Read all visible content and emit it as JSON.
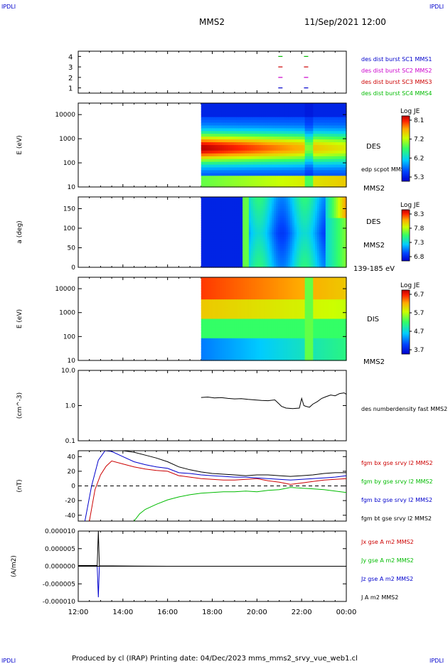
{
  "header": {
    "corner_tl": "IPDLI",
    "corner_tr": "IPDLI",
    "corner_bl": "IPDLI",
    "corner_br": "IPDLI",
    "title": "MMS2",
    "datetime": "11/Sep/2021 12:00",
    "footer": "Produced by cl (IRAP)   Printing date: 04/Dec/2023   mms_mms2_srvy_vue_web1.cl"
  },
  "colors": {
    "blue": "#0000cc",
    "magenta": "#cc00cc",
    "red": "#cc0000",
    "green": "#00bb00",
    "black": "#000000"
  },
  "time_axis": {
    "ticks": [
      "12:00",
      "14:00",
      "16:00",
      "18:00",
      "20:00",
      "22:00",
      "00:00"
    ],
    "hours": [
      12,
      14,
      16,
      18,
      20,
      22,
      24
    ],
    "data_start_hour": 17.5
  },
  "chart_data": [
    {
      "type": "scatter",
      "panel": "spacecraft",
      "ticks": [
        "4",
        "3",
        "2",
        "1"
      ],
      "ylim": [
        0.5,
        4.5
      ],
      "legend": [
        {
          "label": "des dist burst SC1 MMS1",
          "color": "blue"
        },
        {
          "label": "des dist burst SC2 MMS2",
          "color": "magenta"
        },
        {
          "label": "des dist burst SC3 MMS3",
          "color": "red"
        },
        {
          "label": "des dist burst SC4 MMS4",
          "color": "green"
        }
      ],
      "marks": [
        {
          "x": 21.05,
          "y": 4,
          "color": "green"
        },
        {
          "x": 22.2,
          "y": 4,
          "color": "green"
        },
        {
          "x": 21.05,
          "y": 3,
          "color": "red"
        },
        {
          "x": 22.2,
          "y": 3,
          "color": "red"
        },
        {
          "x": 21.05,
          "y": 2,
          "color": "magenta"
        },
        {
          "x": 22.2,
          "y": 2,
          "color": "magenta"
        },
        {
          "x": 21.05,
          "y": 1,
          "color": "blue"
        },
        {
          "x": 22.2,
          "y": 1,
          "color": "blue"
        }
      ]
    },
    {
      "type": "heatmap",
      "panel": "des-energy",
      "ylabel": "E (eV)",
      "yscale": "log",
      "ylim": [
        10,
        30000
      ],
      "ticks": [
        "10000",
        "1000",
        "100",
        "10"
      ],
      "tick_values": [
        10000,
        1000,
        100,
        10
      ],
      "label": "DES",
      "sublabel": "edp scpot MMS2",
      "sat_label": "MMS2",
      "colorbar": {
        "title": "Log JE",
        "ticks": [
          "8.1",
          "7.2",
          "6.2",
          "5.3"
        ]
      }
    },
    {
      "type": "heatmap",
      "panel": "des-pitch",
      "ylabel": "a (deg)",
      "ylim": [
        0,
        180
      ],
      "ticks": [
        "150",
        "100",
        "50",
        "0"
      ],
      "tick_values": [
        150,
        100,
        50,
        0
      ],
      "label": "DES",
      "sat_label": "MMS2",
      "energy_label": "139-185 eV",
      "colorbar": {
        "title": "Log JE",
        "ticks": [
          "8.3",
          "7.8",
          "7.3",
          "6.8"
        ]
      }
    },
    {
      "type": "heatmap",
      "panel": "dis-energy",
      "ylabel": "E (eV)",
      "yscale": "log",
      "ylim": [
        10,
        30000
      ],
      "ticks": [
        "10000",
        "1000",
        "100",
        "10"
      ],
      "tick_values": [
        10000,
        1000,
        100,
        10
      ],
      "label": "DIS",
      "sat_label": "MMS2",
      "colorbar": {
        "title": "Log JE",
        "ticks": [
          "6.7",
          "5.7",
          "4.7",
          "3.7"
        ]
      }
    },
    {
      "type": "line",
      "panel": "density",
      "ylabel": "(cm^-3)",
      "yscale": "log",
      "ylim": [
        0.1,
        10
      ],
      "ticks": [
        "10.0",
        "1.0",
        "0.1"
      ],
      "tick_values": [
        10,
        1,
        0.1
      ],
      "legend": [
        {
          "label": "des numberdensity fast MMS2",
          "color": "black"
        }
      ],
      "series": [
        {
          "name": "des numberdensity fast MMS2",
          "color": "black",
          "x": [
            17.5,
            17.8,
            18.1,
            18.4,
            18.7,
            19.0,
            19.3,
            19.6,
            19.9,
            20.2,
            20.5,
            20.8,
            21.0,
            21.1,
            21.3,
            21.6,
            21.9,
            22.0,
            22.1,
            22.2,
            22.35,
            22.5,
            22.7,
            22.9,
            23.1,
            23.3,
            23.5,
            23.7,
            23.9,
            24.0
          ],
          "values": [
            1.7,
            1.75,
            1.65,
            1.68,
            1.6,
            1.55,
            1.58,
            1.5,
            1.45,
            1.4,
            1.38,
            1.45,
            1.1,
            0.95,
            0.85,
            0.82,
            0.85,
            1.6,
            1.0,
            0.95,
            0.9,
            1.1,
            1.3,
            1.6,
            1.8,
            2.0,
            1.9,
            2.2,
            2.3,
            2.1
          ]
        }
      ]
    },
    {
      "type": "line",
      "panel": "fgm",
      "ylabel": "(nT)",
      "ylim": [
        -48,
        48
      ],
      "ticks": [
        "40",
        "20",
        "0",
        "-20",
        "-40"
      ],
      "tick_values": [
        40,
        20,
        0,
        -20,
        -40
      ],
      "zero_line": true,
      "legend": [
        {
          "label": "fgm bx gse srvy l2 MMS2",
          "color": "red"
        },
        {
          "label": "fgm by gse srvy l2 MMS2",
          "color": "green"
        },
        {
          "label": "fgm bz gse srvy l2 MMS2",
          "color": "blue"
        },
        {
          "label": "fgm bt gse srvy l2 MMS2",
          "color": "black"
        }
      ],
      "series": [
        {
          "name": "fgm bx gse srvy l2 MMS2",
          "color": "red",
          "x": [
            12.5,
            12.75,
            13.0,
            13.25,
            13.5,
            14.0,
            14.5,
            15.0,
            15.5,
            16.0,
            16.5,
            17.0,
            17.5,
            18.0,
            18.5,
            19.0,
            19.5,
            20.0,
            20.5,
            21.0,
            21.5,
            22.0,
            22.5,
            23.0,
            23.5,
            24.0
          ],
          "values": [
            -48,
            -5,
            15,
            27,
            34,
            30,
            26,
            23,
            21,
            20,
            14,
            12,
            10,
            9,
            8,
            8,
            9,
            10,
            7,
            5,
            2,
            4,
            6,
            8,
            9,
            10
          ]
        },
        {
          "name": "fgm by gse srvy l2 MMS2",
          "color": "green",
          "x": [
            14.5,
            14.75,
            15.0,
            15.5,
            16.0,
            16.5,
            17.0,
            17.5,
            18.0,
            18.5,
            19.0,
            19.5,
            20.0,
            20.5,
            21.0,
            21.5,
            22.0,
            22.5,
            23.0,
            23.5,
            24.0
          ],
          "values": [
            -48,
            -38,
            -32,
            -25,
            -19,
            -15,
            -12,
            -10,
            -9,
            -8,
            -8,
            -7,
            -8,
            -6,
            -5,
            -2,
            -3,
            -4,
            -5,
            -7,
            -9
          ]
        },
        {
          "name": "fgm bz gse srvy l2 MMS2",
          "color": "blue",
          "x": [
            12.3,
            12.6,
            12.9,
            13.2,
            13.5,
            14.0,
            14.5,
            15.0,
            15.5,
            16.0,
            16.5,
            17.0,
            17.5,
            18.0,
            18.5,
            19.0,
            19.5,
            20.0,
            20.5,
            21.0,
            21.5,
            22.0,
            22.5,
            23.0,
            23.5,
            24.0
          ],
          "values": [
            -48,
            0,
            35,
            48,
            47,
            40,
            33,
            29,
            26,
            24,
            18,
            17,
            15,
            14,
            13,
            12,
            12,
            11,
            10,
            9,
            8,
            9,
            10,
            11,
            12,
            14
          ]
        },
        {
          "name": "fgm bt gse srvy l2 MMS2",
          "color": "black",
          "x": [
            13.2,
            13.5,
            14.0,
            14.5,
            15.0,
            15.5,
            16.0,
            16.5,
            17.0,
            17.5,
            18.0,
            18.5,
            19.0,
            19.5,
            20.0,
            20.5,
            21.0,
            21.5,
            22.0,
            22.5,
            23.0,
            23.5,
            24.0
          ],
          "values": [
            48,
            48,
            48,
            46,
            42,
            38,
            33,
            26,
            22,
            19,
            17,
            16,
            15,
            14,
            15,
            15,
            14,
            13,
            14,
            15,
            17,
            18,
            18
          ]
        }
      ]
    },
    {
      "type": "line",
      "panel": "current",
      "ylabel": "(A/m2)",
      "ylim": [
        -1e-05,
        1e-05
      ],
      "ticks": [
        "0.000010",
        "0.000005",
        "0.000000",
        "-0.000005",
        "-0.000010"
      ],
      "tick_values": [
        1e-05,
        5e-06,
        0,
        -5e-06,
        -1e-05
      ],
      "legend": [
        {
          "label": "Jx gse A m2 MMS2",
          "color": "red"
        },
        {
          "label": "Jy gse A m2 MMS2",
          "color": "green"
        },
        {
          "label": "Jz gse A m2 MMS2",
          "color": "blue"
        },
        {
          "label": "J A m2 MMS2",
          "color": "black"
        }
      ],
      "series": [
        {
          "name": "J A m2 MMS2",
          "color": "black",
          "x": [
            12.0,
            12.5,
            12.85,
            12.9,
            12.95,
            13.5,
            14.5,
            16.0,
            24.0
          ],
          "values": [
            2e-07,
            2e-07,
            2e-07,
            1e-05,
            1e-07,
            1e-07,
            5e-08,
            0.0,
            0.0
          ]
        },
        {
          "name": "Jz gse A m2 MMS2",
          "color": "blue",
          "x": [
            12.0,
            12.85,
            12.9,
            12.95,
            13.5,
            24.0
          ],
          "values": [
            0.0,
            0.0,
            -8.8e-06,
            0.0,
            0.0,
            0.0
          ]
        }
      ]
    }
  ]
}
